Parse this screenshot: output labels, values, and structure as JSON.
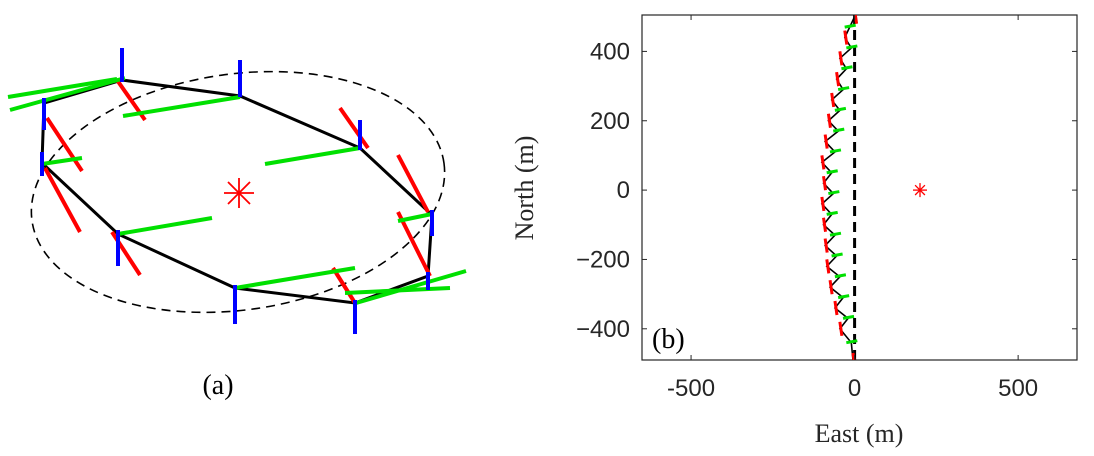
{
  "figure": {
    "panel_a_label": "(a)",
    "panel_b_label": "(b)"
  },
  "chart_data": [
    {
      "type": "diagram",
      "panel": "(a)",
      "colors": {
        "path": "#000000",
        "ellipse": "#000000",
        "axis_x": "#ff0000",
        "axis_y": "#00e000",
        "axis_z": "#0000ff",
        "center": "#ff0000"
      },
      "center_marker": "asterisk"
    },
    {
      "type": "line",
      "panel": "(b)",
      "xlabel": "East (m)",
      "ylabel": "North (m)",
      "xlim": [
        -650,
        680
      ],
      "ylim": [
        -490,
        505
      ],
      "xticks": [
        -500,
        0,
        500
      ],
      "xtick_labels": [
        "-500",
        "0",
        "500"
      ],
      "yticks": [
        -400,
        -200,
        0,
        200,
        400
      ],
      "ytick_labels": [
        "−400",
        "−200",
        "0",
        "200",
        "400"
      ],
      "grid": false,
      "colors": {
        "path": "#000000",
        "reference": "#000000",
        "axis_x": "#ff0000",
        "axis_y": "#00e000",
        "center": "#ff0000"
      },
      "series": [
        {
          "x": [
            0,
            -15,
            -30,
            -10,
            -45,
            -25,
            -55,
            -35,
            -70,
            -45,
            -80,
            -50,
            -90,
            -60,
            -100,
            -70,
            -95,
            -65,
            -100,
            -70,
            -95,
            -60,
            -90,
            -55,
            -85,
            -45,
            -75,
            -35,
            -60,
            -20,
            -45,
            -10,
            -5
          ],
          "y": [
            500,
            470,
            440,
            410,
            380,
            350,
            320,
            290,
            260,
            230,
            200,
            170,
            140,
            110,
            80,
            50,
            20,
            -10,
            -40,
            -70,
            -100,
            -130,
            -160,
            -190,
            -220,
            -250,
            -280,
            -310,
            -340,
            -370,
            -400,
            -440,
            -490
          ]
        },
        {
          "x": [
            0,
            0
          ],
          "y": [
            -490,
            505
          ]
        }
      ],
      "center": {
        "x": 200,
        "y": 0
      }
    }
  ]
}
